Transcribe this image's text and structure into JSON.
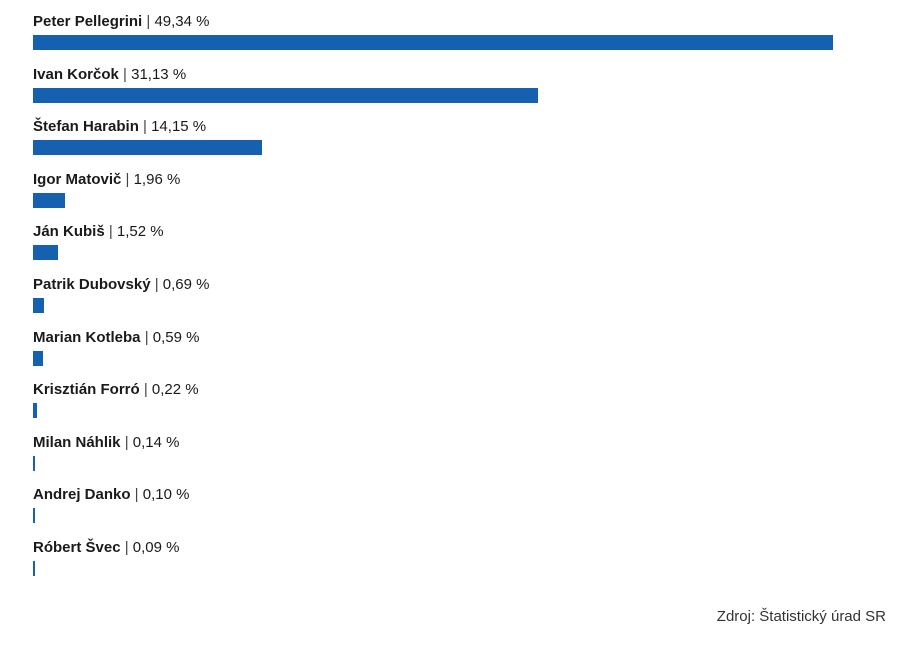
{
  "chart_data": {
    "type": "bar",
    "orientation": "horizontal",
    "categories": [
      "Peter Pellegrini",
      "Ivan Korčok",
      "Štefan Harabin",
      "Igor Matovič",
      "Ján Kubiš",
      "Patrik Dubovský",
      "Marian Kotleba",
      "Krisztián Forró",
      "Milan Náhlik",
      "Andrej Danko",
      "Róbert Švec"
    ],
    "values": [
      49.34,
      31.13,
      14.15,
      1.96,
      1.52,
      0.69,
      0.59,
      0.22,
      0.14,
      0.1,
      0.09
    ],
    "value_labels": [
      "49,34 %",
      "31,13 %",
      "14,15 %",
      "1,96 %",
      "1,52 %",
      "0,69 %",
      "0,59 %",
      "0,22 %",
      "0,14 %",
      "0,10 %",
      "0,09 %"
    ],
    "separator": "|",
    "title": "",
    "xlabel": "",
    "ylabel": "",
    "grid": false
  },
  "colors": {
    "bar": "#1561b0"
  },
  "source": "Zdroj: Štatistický úrad SR"
}
